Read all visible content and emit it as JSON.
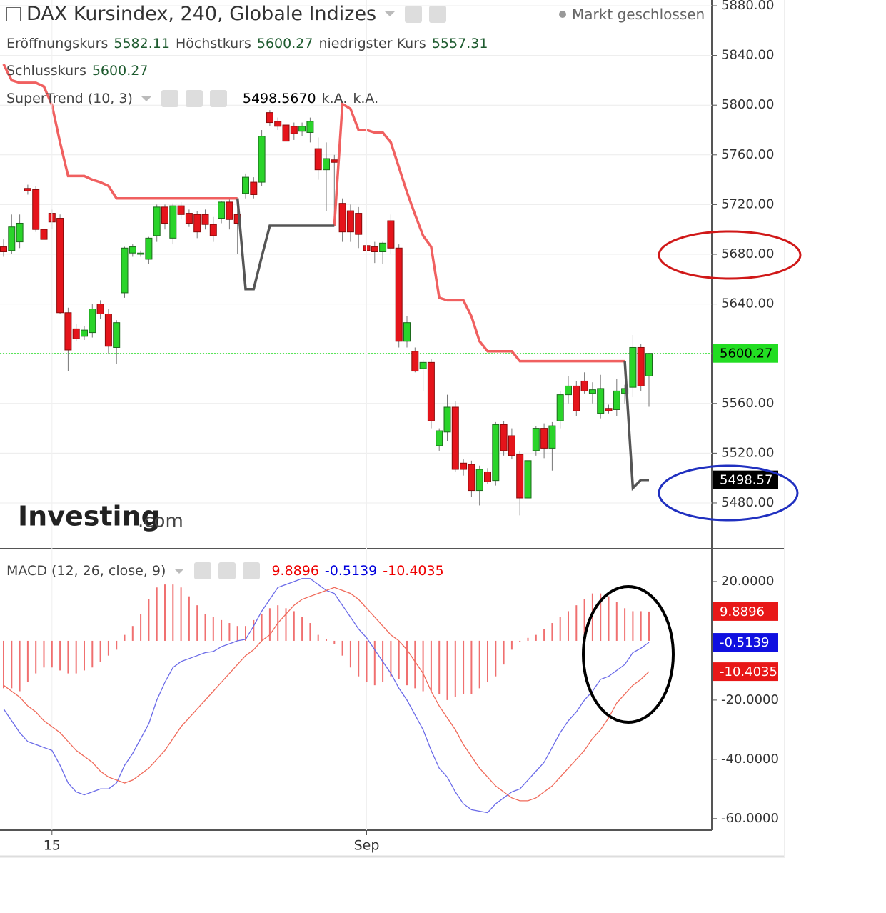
{
  "chart_data": [
    {
      "type": "candlestick",
      "title": "DAX Kursindex, 240, Globale Indizes",
      "status": "Markt geschlossen",
      "ohlc_labels": [
        "Eröffnungskurs",
        "Höchstkurs",
        "niedrigster Kurs",
        "Schlusskurs"
      ],
      "watermark": [
        "Investing",
        ".com"
      ],
      "up_color": "#2ad42a",
      "down_color": "#e5141b",
      "last_price_color": "#22dd22",
      "ylim": [
        5443.2,
        5884.6
      ],
      "yticks": [
        {
          "value": 5480,
          "label": "5480.00"
        },
        {
          "value": 5520,
          "label": "5520.00"
        },
        {
          "value": 5560,
          "label": "5560.00"
        },
        {
          "value": 5600,
          "label": "5600.00"
        },
        {
          "value": 5640,
          "label": "5640.00"
        },
        {
          "value": 5680,
          "label": "5680.00"
        },
        {
          "value": 5720,
          "label": "5720.00"
        },
        {
          "value": 5760,
          "label": "5760.00"
        },
        {
          "value": 5800,
          "label": "5800.00"
        },
        {
          "value": 5840,
          "label": "5840.00"
        },
        {
          "value": 5880,
          "label": "5880.00"
        }
      ],
      "grid": true,
      "open": [
        5686,
        5683,
        5690,
        5733,
        5732,
        5700,
        5713,
        5709,
        5633,
        5620,
        5614,
        5617,
        5640,
        5632,
        5605,
        5649,
        5681,
        5680,
        5676,
        5695,
        5718,
        5693,
        5719,
        5713,
        5712,
        5712,
        5704,
        5709,
        5722,
        5712,
        5729,
        5738,
        5738,
        5794,
        5787,
        5784,
        5783,
        5779,
        5778,
        5765,
        5748,
        5756,
        5721,
        5715,
        5713,
        5687,
        5686,
        5682,
        5707,
        5685,
        5610,
        5602,
        5588,
        5593,
        5526,
        5537,
        5557,
        5512,
        5511,
        5490,
        5505,
        5498,
        5543,
        5534,
        5519,
        5484,
        5522,
        5540,
        5524,
        5546,
        5567,
        5574,
        5578,
        5568,
        5552,
        5556,
        5555,
        5568,
        5573,
        5605,
        5582.11
      ],
      "high": [
        5692,
        5712,
        5712,
        5736,
        5735,
        5705,
        5716,
        5712,
        5637,
        5624,
        5622,
        5640,
        5643,
        5636,
        5627,
        5686,
        5688,
        5683,
        5694,
        5720,
        5720,
        5721,
        5722,
        5716,
        5715,
        5716,
        5710,
        5723,
        5725,
        5716,
        5745,
        5742,
        5780,
        5796,
        5790,
        5788,
        5786,
        5786,
        5790,
        5774,
        5770,
        5760,
        5725,
        5720,
        5718,
        5692,
        5690,
        5690,
        5712,
        5688,
        5630,
        5605,
        5595,
        5596,
        5540,
        5567,
        5562,
        5515,
        5514,
        5510,
        5508,
        5545,
        5546,
        5540,
        5522,
        5522,
        5542,
        5544,
        5545,
        5570,
        5582,
        5578,
        5585,
        5577,
        5583,
        5559,
        5580,
        5575,
        5615,
        5608,
        5600.27
      ],
      "low": [
        5678,
        5680,
        5685,
        5728,
        5698,
        5670,
        5700,
        5632,
        5586,
        5610,
        5611,
        5613,
        5628,
        5600,
        5592,
        5645,
        5678,
        5678,
        5672,
        5690,
        5700,
        5688,
        5708,
        5702,
        5693,
        5700,
        5690,
        5705,
        5700,
        5680,
        5725,
        5725,
        5735,
        5783,
        5780,
        5765,
        5772,
        5775,
        5770,
        5740,
        5715,
        5710,
        5690,
        5690,
        5685,
        5675,
        5673,
        5672,
        5680,
        5605,
        5605,
        5585,
        5570,
        5540,
        5522,
        5530,
        5505,
        5502,
        5485,
        5478,
        5495,
        5494,
        5518,
        5515,
        5470,
        5478,
        5518,
        5516,
        5506,
        5540,
        5560,
        5550,
        5568,
        5560,
        5548,
        5552,
        5550,
        5560,
        5565,
        5570,
        5557.31
      ],
      "close": [
        5682,
        5702,
        5705,
        5731,
        5700,
        5692,
        5706,
        5633,
        5603,
        5612,
        5619,
        5636,
        5632,
        5606,
        5625,
        5685,
        5686,
        5681,
        5693,
        5718,
        5705,
        5719,
        5712,
        5705,
        5698,
        5704,
        5695,
        5722,
        5708,
        5705,
        5742,
        5728,
        5775,
        5786,
        5783,
        5771,
        5777,
        5783,
        5787,
        5748,
        5757,
        5754,
        5698,
        5698,
        5696,
        5683,
        5682,
        5689,
        5685,
        5610,
        5625,
        5586,
        5593,
        5546,
        5538,
        5557,
        5507,
        5507,
        5490,
        5507,
        5497,
        5543,
        5522,
        5518,
        5484,
        5514,
        5540,
        5524,
        5542,
        5567,
        5574,
        5554,
        5570,
        5571,
        5572,
        5554,
        5570,
        5572,
        5605,
        5574,
        5600.27
      ],
      "overlay": {
        "title": "SuperTrend (10, 3)",
        "value_text": "5498.5670",
        "na_labels": [
          "k.A.",
          "k.A."
        ],
        "box_text": "5498.57",
        "series": [
          {
            "color": "#f06060",
            "values": [
              5833,
              5820,
              5818,
              5818,
              5818,
              5815,
              5800,
              5770,
              5743,
              5743,
              5743,
              5740,
              5738,
              5735,
              5725,
              5725,
              5725,
              5725,
              5725,
              5725,
              5725,
              5725,
              5725,
              5725,
              5725,
              5725,
              5725,
              5725,
              5725,
              5725,
              null,
              null,
              null,
              null,
              null,
              null,
              null,
              null,
              null,
              null,
              null,
              5703,
              5801,
              5797,
              5780,
              5780,
              5778,
              5778,
              5770,
              5750,
              5730,
              5712,
              5695,
              5686,
              5645,
              5643,
              5643,
              5643,
              5630,
              5610,
              5602,
              5602,
              5602,
              5602,
              5594,
              5594,
              5594,
              5594,
              5594,
              5594,
              5594,
              5594,
              5594,
              5594,
              5594,
              5594,
              5594,
              5594,
              null,
              null,
              null
            ]
          },
          {
            "color": "#555555",
            "values": [
              null,
              null,
              null,
              null,
              null,
              null,
              null,
              null,
              null,
              null,
              null,
              null,
              null,
              null,
              null,
              null,
              null,
              null,
              null,
              null,
              null,
              null,
              null,
              null,
              null,
              null,
              null,
              null,
              null,
              5725,
              5652,
              5652,
              5678,
              5703,
              5703,
              5703,
              5703,
              5703,
              5703,
              5703,
              5703,
              5703,
              null,
              null,
              null,
              null,
              null,
              null,
              null,
              null,
              null,
              null,
              null,
              null,
              null,
              null,
              null,
              null,
              null,
              null,
              null,
              null,
              null,
              null,
              null,
              null,
              null,
              null,
              null,
              null,
              null,
              null,
              null,
              null,
              null,
              null,
              null,
              5594,
              5492,
              5498.567,
              5498.567
            ]
          }
        ]
      }
    },
    {
      "type": "macd",
      "title": "MACD (12, 26, close, 9)",
      "categories": [
        null,
        null,
        null,
        null,
        null,
        null,
        "15",
        null,
        null,
        null,
        null,
        null,
        null,
        null,
        null,
        null,
        null,
        null,
        null,
        null,
        null,
        null,
        null,
        null,
        null,
        null,
        null,
        null,
        null,
        null,
        null,
        null,
        null,
        null,
        null,
        null,
        null,
        null,
        null,
        null,
        null,
        null,
        null,
        null,
        null,
        "Sep",
        null,
        null,
        null,
        null,
        null,
        null,
        null,
        null,
        null,
        null,
        null,
        null,
        null,
        null,
        null,
        null,
        null,
        null,
        null,
        null,
        null,
        null,
        null,
        null,
        null,
        null,
        null,
        null,
        null,
        null,
        null,
        null,
        null,
        null,
        null
      ],
      "ylim": [
        -63.9,
        30.6
      ],
      "yticks": [
        {
          "value": -60,
          "label": "-60.0000"
        },
        {
          "value": -40,
          "label": "-40.0000"
        },
        {
          "value": -20,
          "label": "-20.0000"
        },
        {
          "value": 20,
          "label": "20.0000"
        }
      ],
      "histogram": {
        "color": "#f07070",
        "values": [
          -16,
          -16,
          -17,
          -14,
          -11,
          -9,
          -9,
          -10,
          -11,
          -11,
          -10,
          -9,
          -7,
          -5,
          -3,
          2,
          5,
          9,
          14,
          18,
          19,
          19,
          18,
          15,
          12,
          9,
          8,
          7,
          6,
          5,
          5,
          7,
          9,
          11,
          12,
          11,
          10,
          8,
          6,
          2,
          0.5,
          -1,
          -5,
          -9,
          -12,
          -14,
          -15,
          -14,
          -12,
          -13,
          -15,
          -16,
          -17,
          -17,
          -18,
          -20,
          -19,
          -18,
          -18,
          -16,
          -14,
          -12,
          -8,
          -3,
          -0.5,
          1,
          2,
          4,
          6,
          8,
          10,
          12,
          14,
          16,
          16,
          15,
          13,
          11,
          10,
          10,
          9.8896
        ]
      },
      "series": [
        {
          "color": "#6a6ae8",
          "values": [
            -23,
            -27,
            -31,
            -34,
            -35,
            -36,
            -37,
            -42,
            -48,
            -51,
            -52,
            -51,
            -50,
            -50,
            -48,
            -42,
            -38,
            -33,
            -28,
            -20,
            -14,
            -9,
            -7,
            -6,
            -5,
            -4,
            -3.6,
            -2,
            -1,
            0,
            0.5,
            5,
            10,
            14,
            18,
            19,
            20,
            21,
            21,
            19,
            17,
            16,
            12,
            8,
            4,
            1,
            -3,
            -7,
            -11,
            -16,
            -20,
            -25,
            -30,
            -37,
            -43,
            -46,
            -51,
            -55,
            -57,
            -57.5,
            -58,
            -55,
            -53,
            -51,
            -50,
            -47,
            -44,
            -41,
            -36,
            -31,
            -27,
            -24,
            -20,
            -17,
            -13,
            -12,
            -10,
            -8,
            -4,
            -2.5,
            -0.5139
          ]
        },
        {
          "color": "#f06a5a",
          "values": [
            -15,
            -17,
            -19,
            -22,
            -24,
            -27,
            -29,
            -31,
            -34,
            -37,
            -39,
            -41,
            -44,
            -46,
            -47,
            -48,
            -47,
            -45,
            -43,
            -40,
            -37,
            -33,
            -29,
            -26,
            -23,
            -20,
            -17,
            -14,
            -11,
            -8,
            -5,
            -3,
            0,
            2,
            6,
            9,
            12,
            14,
            15,
            16,
            17,
            18,
            17,
            16,
            14,
            11,
            8,
            5,
            2,
            0,
            -3,
            -7,
            -11,
            -17,
            -22,
            -26,
            -30,
            -35,
            -39,
            -43,
            -46,
            -49,
            -51,
            -53,
            -54,
            -54,
            -53,
            -51,
            -49,
            -46,
            -43,
            -40,
            -37,
            -33,
            -30,
            -26,
            -21,
            -18,
            -15,
            -13,
            -10.4035
          ]
        }
      ]
    }
  ]
}
